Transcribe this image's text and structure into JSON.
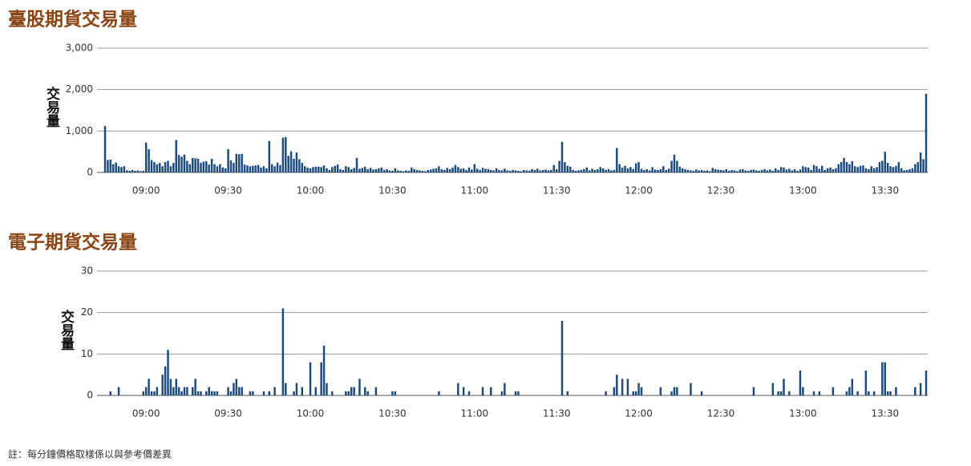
{
  "chart_data": [
    {
      "type": "bar",
      "title": "臺股期貨交易量",
      "y_label": "交易量",
      "color": "#1b4a7e",
      "grid": true,
      "ylim": [
        0,
        3000
      ],
      "yticks": [
        0,
        {
          "value": 1000,
          "label": "1,000"
        },
        {
          "value": 2000,
          "label": "2,000"
        },
        {
          "value": 3000,
          "label": "3,000"
        }
      ],
      "categories": [
        null,
        null,
        null,
        null,
        null,
        null,
        null,
        null,
        null,
        null,
        null,
        null,
        null,
        null,
        null,
        "09:00",
        null,
        null,
        null,
        null,
        null,
        null,
        null,
        null,
        null,
        null,
        null,
        null,
        null,
        null,
        null,
        null,
        null,
        null,
        null,
        null,
        null,
        null,
        null,
        null,
        null,
        null,
        null,
        null,
        null,
        "09:30",
        null,
        null,
        null,
        null,
        null,
        null,
        null,
        null,
        null,
        null,
        null,
        null,
        null,
        null,
        null,
        null,
        null,
        null,
        null,
        null,
        null,
        null,
        null,
        null,
        null,
        null,
        null,
        null,
        null,
        "10:00",
        null,
        null,
        null,
        null,
        null,
        null,
        null,
        null,
        null,
        null,
        null,
        null,
        null,
        null,
        null,
        null,
        null,
        null,
        null,
        null,
        null,
        null,
        null,
        null,
        null,
        null,
        null,
        null,
        null,
        "10:30",
        null,
        null,
        null,
        null,
        null,
        null,
        null,
        null,
        null,
        null,
        null,
        null,
        null,
        null,
        null,
        null,
        null,
        null,
        null,
        null,
        null,
        null,
        null,
        null,
        null,
        null,
        null,
        null,
        null,
        "11:00",
        null,
        null,
        null,
        null,
        null,
        null,
        null,
        null,
        null,
        null,
        null,
        null,
        null,
        null,
        null,
        null,
        null,
        null,
        null,
        null,
        null,
        null,
        null,
        null,
        null,
        null,
        null,
        null,
        null,
        "11:30",
        null,
        null,
        null,
        null,
        null,
        null,
        null,
        null,
        null,
        null,
        null,
        null,
        null,
        null,
        null,
        null,
        null,
        null,
        null,
        null,
        null,
        null,
        null,
        null,
        null,
        null,
        null,
        null,
        null,
        "12:00",
        null,
        null,
        null,
        null,
        null,
        null,
        null,
        null,
        null,
        null,
        null,
        null,
        null,
        null,
        null,
        null,
        null,
        null,
        null,
        null,
        null,
        null,
        null,
        null,
        null,
        null,
        null,
        null,
        null,
        "12:30",
        null,
        null,
        null,
        null,
        null,
        null,
        null,
        null,
        null,
        null,
        null,
        null,
        null,
        null,
        null,
        null,
        null,
        null,
        null,
        null,
        null,
        null,
        null,
        null,
        null,
        null,
        null,
        null,
        null,
        "13:00",
        null,
        null,
        null,
        null,
        null,
        null,
        null,
        null,
        null,
        null,
        null,
        null,
        null,
        null,
        null,
        null,
        null,
        null,
        null,
        null,
        null,
        null,
        null,
        null,
        null,
        null,
        null,
        null,
        null,
        "13:30",
        null,
        null,
        null,
        null,
        null,
        null,
        null,
        null,
        null,
        null,
        null,
        null,
        null,
        null,
        null
      ],
      "values": [
        1120,
        300,
        310,
        200,
        240,
        150,
        130,
        150,
        50,
        40,
        60,
        40,
        50,
        30,
        40,
        720,
        560,
        300,
        250,
        200,
        230,
        150,
        250,
        280,
        150,
        230,
        780,
        420,
        380,
        430,
        280,
        200,
        350,
        340,
        330,
        230,
        260,
        270,
        190,
        330,
        200,
        150,
        200,
        120,
        100,
        560,
        290,
        230,
        450,
        440,
        450,
        190,
        170,
        150,
        160,
        170,
        180,
        120,
        150,
        100,
        760,
        200,
        150,
        240,
        180,
        840,
        850,
        400,
        510,
        330,
        480,
        320,
        230,
        150,
        120,
        100,
        130,
        140,
        140,
        130,
        170,
        100,
        60,
        130,
        160,
        190,
        80,
        60,
        150,
        130,
        80,
        110,
        350,
        90,
        110,
        140,
        80,
        110,
        70,
        80,
        100,
        120,
        60,
        80,
        50,
        40,
        100,
        50,
        40,
        30,
        50,
        40,
        120,
        80,
        60,
        50,
        40,
        30,
        60,
        70,
        90,
        100,
        150,
        80,
        60,
        110,
        80,
        120,
        180,
        130,
        90,
        100,
        60,
        120,
        70,
        200,
        90,
        60,
        110,
        90,
        80,
        60,
        50,
        100,
        60,
        50,
        90,
        50,
        40,
        60,
        50,
        40,
        30,
        60,
        50,
        40,
        80,
        60,
        90,
        50,
        60,
        70,
        50,
        60,
        180,
        80,
        280,
        740,
        250,
        160,
        140,
        60,
        40,
        50,
        60,
        80,
        120,
        50,
        90,
        60,
        80,
        130,
        100,
        60,
        80,
        50,
        60,
        590,
        200,
        120,
        160,
        100,
        130,
        80,
        220,
        250,
        90,
        60,
        80,
        50,
        130,
        70,
        60,
        80,
        150,
        60,
        90,
        280,
        430,
        280,
        140,
        100,
        80,
        60,
        50,
        40,
        70,
        50,
        60,
        40,
        50,
        30,
        110,
        80,
        70,
        60,
        50,
        80,
        40,
        60,
        50,
        30,
        70,
        80,
        50,
        40,
        60,
        70,
        50,
        40,
        60,
        80,
        50,
        70,
        40,
        100,
        60,
        130,
        120,
        70,
        90,
        50,
        80,
        40,
        70,
        150,
        130,
        120,
        60,
        180,
        150,
        90,
        160,
        60,
        100,
        120,
        80,
        100,
        200,
        250,
        350,
        250,
        200,
        270,
        150,
        130,
        160,
        170,
        100,
        80,
        150,
        100,
        130,
        250,
        280,
        500,
        230,
        150,
        130,
        160,
        250,
        100,
        50,
        60,
        80,
        100,
        200,
        250,
        480,
        320,
        1900
      ]
    },
    {
      "type": "bar",
      "title": "電子期貨交易量",
      "y_label": "交易量",
      "color": "#1b4a7e",
      "grid": true,
      "ylim": [
        0,
        30
      ],
      "yticks": [
        0,
        10,
        20,
        30
      ],
      "categories": [
        null,
        null,
        null,
        null,
        null,
        null,
        null,
        null,
        null,
        null,
        null,
        null,
        null,
        null,
        null,
        "09:00",
        null,
        null,
        null,
        null,
        null,
        null,
        null,
        null,
        null,
        null,
        null,
        null,
        null,
        null,
        null,
        null,
        null,
        null,
        null,
        null,
        null,
        null,
        null,
        null,
        null,
        null,
        null,
        null,
        null,
        "09:30",
        null,
        null,
        null,
        null,
        null,
        null,
        null,
        null,
        null,
        null,
        null,
        null,
        null,
        null,
        null,
        null,
        null,
        null,
        null,
        null,
        null,
        null,
        null,
        null,
        null,
        null,
        null,
        null,
        null,
        "10:00",
        null,
        null,
        null,
        null,
        null,
        null,
        null,
        null,
        null,
        null,
        null,
        null,
        null,
        null,
        null,
        null,
        null,
        null,
        null,
        null,
        null,
        null,
        null,
        null,
        null,
        null,
        null,
        null,
        null,
        "10:30",
        null,
        null,
        null,
        null,
        null,
        null,
        null,
        null,
        null,
        null,
        null,
        null,
        null,
        null,
        null,
        null,
        null,
        null,
        null,
        null,
        null,
        null,
        null,
        null,
        null,
        null,
        null,
        null,
        null,
        "11:00",
        null,
        null,
        null,
        null,
        null,
        null,
        null,
        null,
        null,
        null,
        null,
        null,
        null,
        null,
        null,
        null,
        null,
        null,
        null,
        null,
        null,
        null,
        null,
        null,
        null,
        null,
        null,
        null,
        null,
        "11:30",
        null,
        null,
        null,
        null,
        null,
        null,
        null,
        null,
        null,
        null,
        null,
        null,
        null,
        null,
        null,
        null,
        null,
        null,
        null,
        null,
        null,
        null,
        null,
        null,
        null,
        null,
        null,
        null,
        null,
        "12:00",
        null,
        null,
        null,
        null,
        null,
        null,
        null,
        null,
        null,
        null,
        null,
        null,
        null,
        null,
        null,
        null,
        null,
        null,
        null,
        null,
        null,
        null,
        null,
        null,
        null,
        null,
        null,
        null,
        null,
        "12:30",
        null,
        null,
        null,
        null,
        null,
        null,
        null,
        null,
        null,
        null,
        null,
        null,
        null,
        null,
        null,
        null,
        null,
        null,
        null,
        null,
        null,
        null,
        null,
        null,
        null,
        null,
        null,
        null,
        null,
        "13:00",
        null,
        null,
        null,
        null,
        null,
        null,
        null,
        null,
        null,
        null,
        null,
        null,
        null,
        null,
        null,
        null,
        null,
        null,
        null,
        null,
        null,
        null,
        null,
        null,
        null,
        null,
        null,
        null,
        null,
        "13:30",
        null,
        null,
        null,
        null,
        null,
        null,
        null,
        null,
        null,
        null,
        null,
        null,
        null,
        null,
        null
      ],
      "values": [
        0,
        0,
        1,
        0,
        0,
        2,
        0,
        0,
        0,
        0,
        0,
        0,
        0,
        0,
        1,
        2,
        4,
        1,
        1,
        2,
        0,
        5,
        7,
        11,
        4,
        2,
        4,
        2,
        1,
        2,
        2,
        0,
        2,
        4,
        1,
        1,
        0,
        1,
        2,
        1,
        1,
        1,
        0,
        0,
        0,
        2,
        1,
        3,
        4,
        2,
        2,
        0,
        0,
        1,
        1,
        0,
        0,
        0,
        1,
        0,
        1,
        0,
        2,
        0,
        0,
        21,
        3,
        0,
        0,
        1,
        3,
        0,
        2,
        0,
        0,
        8,
        0,
        2,
        0,
        8,
        12,
        3,
        0,
        1,
        0,
        0,
        0,
        0,
        1,
        1,
        2,
        2,
        0,
        4,
        0,
        2,
        1,
        0,
        0,
        2,
        0,
        0,
        0,
        0,
        0,
        1,
        1,
        0,
        0,
        0,
        0,
        0,
        0,
        0,
        0,
        0,
        0,
        0,
        0,
        0,
        0,
        0,
        1,
        0,
        0,
        0,
        0,
        0,
        0,
        3,
        0,
        2,
        0,
        1,
        0,
        0,
        0,
        0,
        2,
        0,
        0,
        2,
        0,
        0,
        0,
        1,
        3,
        0,
        0,
        0,
        1,
        1,
        0,
        0,
        0,
        0,
        0,
        0,
        0,
        0,
        0,
        0,
        0,
        0,
        0,
        0,
        0,
        18,
        0,
        1,
        0,
        0,
        0,
        0,
        0,
        0,
        0,
        0,
        0,
        0,
        0,
        0,
        0,
        1,
        0,
        0,
        2,
        5,
        0,
        4,
        0,
        4,
        0,
        1,
        1,
        3,
        2,
        0,
        0,
        0,
        0,
        0,
        0,
        2,
        0,
        0,
        0,
        1,
        2,
        2,
        0,
        0,
        0,
        0,
        3,
        0,
        0,
        0,
        1,
        0,
        0,
        0,
        0,
        0,
        0,
        0,
        0,
        0,
        0,
        0,
        0,
        0,
        0,
        0,
        0,
        0,
        0,
        2,
        0,
        0,
        0,
        0,
        0,
        0,
        3,
        0,
        1,
        1,
        4,
        0,
        1,
        0,
        0,
        0,
        6,
        2,
        0,
        0,
        0,
        1,
        0,
        1,
        0,
        0,
        0,
        0,
        2,
        0,
        0,
        0,
        0,
        1,
        2,
        4,
        0,
        1,
        0,
        0,
        6,
        1,
        0,
        1,
        0,
        0,
        8,
        8,
        1,
        1,
        0,
        2,
        0,
        0,
        0,
        0,
        0,
        0,
        2,
        0,
        3,
        0,
        6
      ]
    }
  ],
  "footnote": "註：每分鐘價格取樣係以與參考價差異"
}
